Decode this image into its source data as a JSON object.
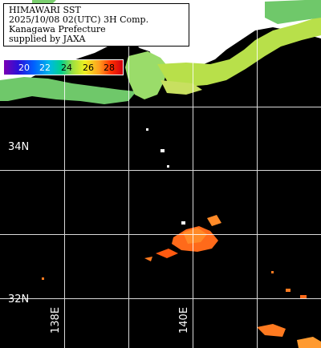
{
  "header": {
    "line1": "HIMAWARI SST",
    "line2": "2025/10/08 02(UTC) 3H Comp.",
    "line3": "Kanagawa Prefecture",
    "line4": "supplied by JAXA"
  },
  "colorbar": {
    "ticks": [
      "20",
      "22",
      "24",
      "26",
      "28"
    ]
  },
  "grid": {
    "lat_labels": [
      "34N",
      "32N"
    ],
    "lon_labels": [
      "138E",
      "140E"
    ]
  },
  "colors": {
    "land": "#ffffff",
    "ocean_nodata": "#000000",
    "grid": "#ffffff",
    "sst_cool": "#6fc86a",
    "sst_mid": "#b8e04a",
    "sst_warm": "#ff6a1a"
  }
}
